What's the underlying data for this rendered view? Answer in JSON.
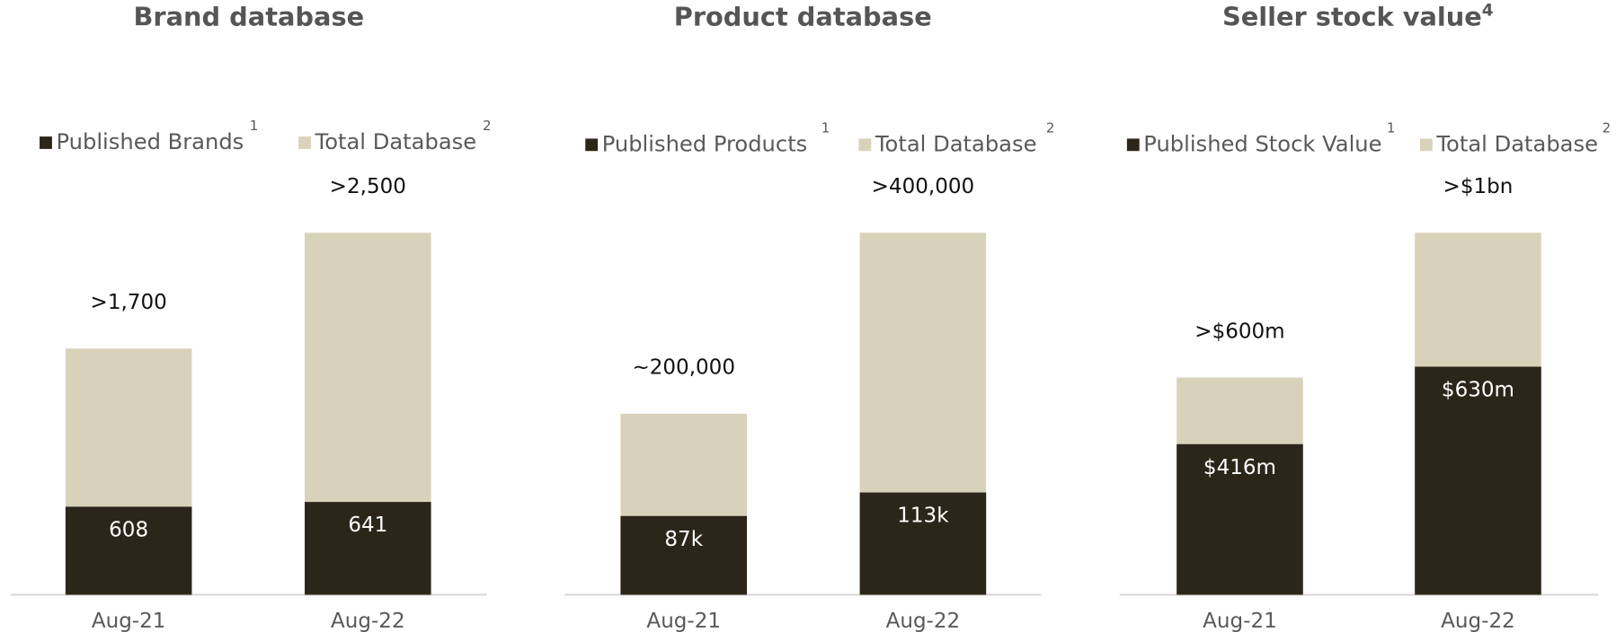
{
  "chart_data": [
    {
      "type": "bar",
      "title": "Brand database",
      "categories": [
        "Aug-21",
        "Aug-22"
      ],
      "series": [
        {
          "name": "Published Brands",
          "note": "1",
          "color": "#2c2519",
          "values": [
            608,
            641
          ]
        },
        {
          "name": "Total Database",
          "note": "2",
          "color": "#d9d2ba",
          "values": [
            1700,
            2500
          ],
          "value_labels": [
            ">1,700",
            ">2,500"
          ]
        }
      ]
    },
    {
      "type": "bar",
      "title": "Product database",
      "categories": [
        "Aug-21",
        "Aug-22"
      ],
      "series": [
        {
          "name": "Published Products",
          "note": "1",
          "color": "#2c2519",
          "values": [
            87000,
            113000
          ],
          "value_labels": [
            "87k",
            "113k"
          ]
        },
        {
          "name": "Total Database",
          "note": "2",
          "color": "#d9d2ba",
          "values": [
            200000,
            400000
          ],
          "value_labels": [
            "~200,000",
            ">400,000"
          ]
        }
      ]
    },
    {
      "type": "bar",
      "title": "Seller stock value",
      "title_note": "4",
      "categories": [
        "Aug-21",
        "Aug-22"
      ],
      "series": [
        {
          "name": "Published Stock Value",
          "note": "1",
          "color": "#2c2519",
          "values": [
            416000000,
            630000000
          ],
          "value_labels": [
            "$416m",
            "$630m"
          ]
        },
        {
          "name": "Total Database",
          "note": "2",
          "color": "#d9d2ba",
          "values": [
            600000000,
            1000000000
          ],
          "value_labels": [
            ">$600m",
            ">$1bn"
          ]
        }
      ]
    }
  ]
}
